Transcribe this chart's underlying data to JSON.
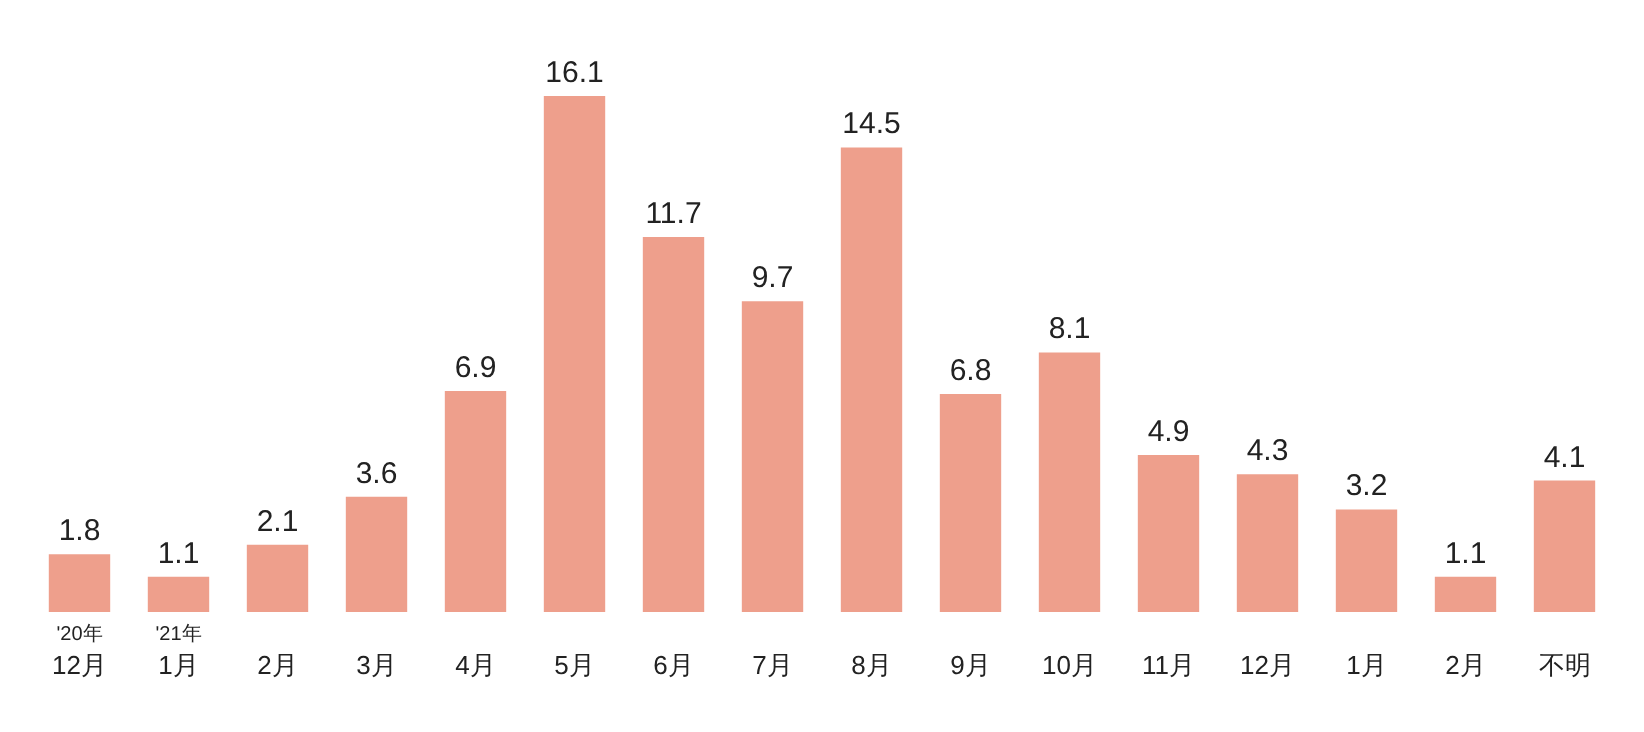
{
  "chart_data": {
    "type": "bar",
    "categories": [
      "'20年\n12月",
      "'21年\n1月",
      "2月",
      "3月",
      "4月",
      "5月",
      "6月",
      "7月",
      "8月",
      "9月",
      "10月",
      "11月",
      "12月",
      "1月",
      "2月",
      "不明"
    ],
    "values": [
      1.8,
      1.1,
      2.1,
      3.6,
      6.9,
      16.1,
      11.7,
      9.7,
      14.5,
      6.8,
      8.1,
      4.9,
      4.3,
      3.2,
      1.1,
      4.1
    ],
    "color": "#ee9f8c",
    "data_labels": true,
    "grid": false,
    "legend": false
  }
}
